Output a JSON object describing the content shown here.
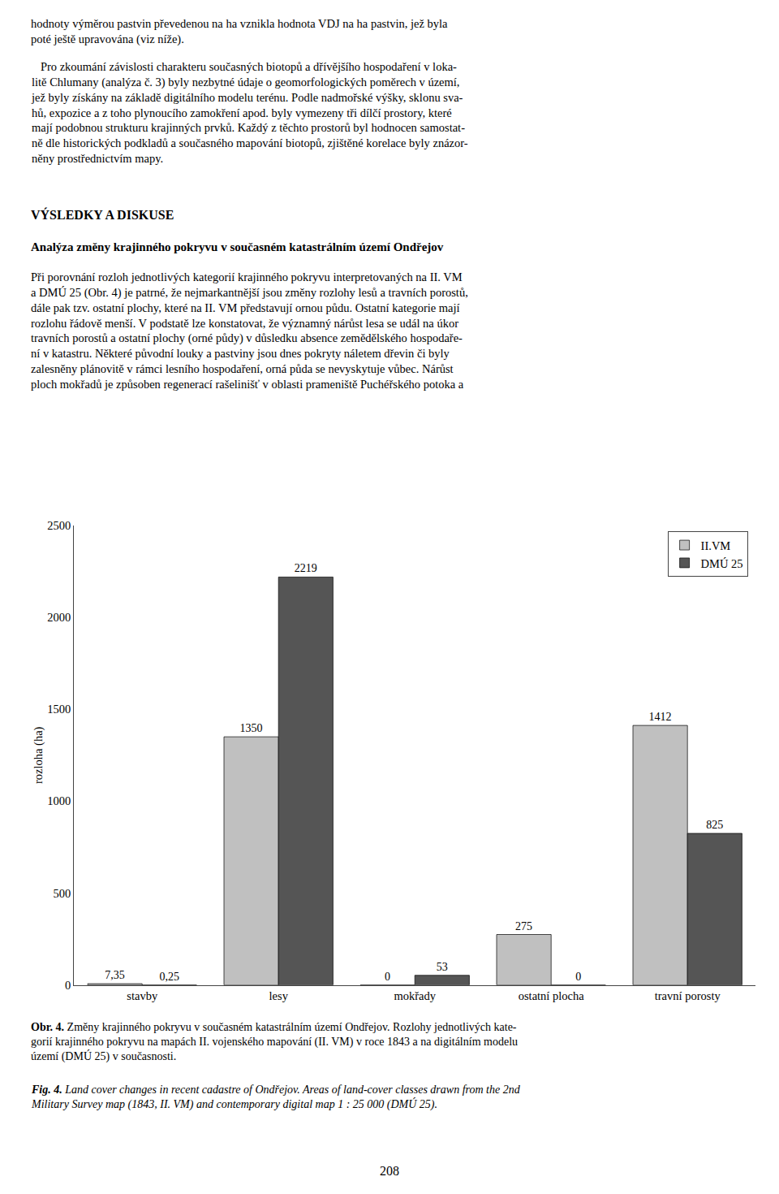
{
  "chart_data": {
    "type": "bar",
    "categories": [
      "stavby",
      "lesy",
      "mokřady",
      "ostatní plocha",
      "travní porosty"
    ],
    "series": [
      {
        "name": "II.VM",
        "color": "#c0c0c0",
        "values": [
          7.35,
          1350,
          0,
          275,
          1412
        ],
        "value_labels": [
          "7,35",
          "1350",
          "0",
          "275",
          "1412"
        ]
      },
      {
        "name": "DMÚ 25",
        "color": "#555555",
        "values": [
          0.25,
          2219,
          53,
          0,
          825
        ],
        "value_labels": [
          "0,25",
          "2219",
          "53",
          "0",
          "825"
        ]
      }
    ],
    "ylabel": "rozloha (ha)",
    "ylim": [
      0,
      2500
    ],
    "yticks": [
      0,
      500,
      1000,
      1500,
      2000,
      2500
    ],
    "grid": false,
    "legend": "upper right",
    "data_labels": true,
    "annotations": [
      "hodnoty výměrou pastvin převedenou na ha vznikla hodnota VDJ na ha pastvin, jež byla\npoté ještě upravována (viz níže).",
      "   Pro zkoumání závislosti charakteru současných biotopů a dřívějšího hospodaření v loka-\nlitě Chlumany (analýza č. 3) byly nezbytné údaje o geomorfologických poměrech v území,\njež byly získány na základě digitálního modelu terénu. Podle nadmořské výšky, sklonu sva-\nhů, expozice a z toho plynoucího zamokření apod. byly vymezeny tři dílčí prostory, které\nmají podobnou strukturu krajinných prvků. Každý z těchto prostorů byl hodnocen samostat-\nně dle historických podkladů a současného mapování biotopů, zjištěné korelace byly znázor-\nněny prostřednictvím mapy.",
      "VÝSLEDKY A DISKUSE",
      "Analýza změny krajinného pokryvu v současném katastrálním území Ondřejov",
      "Při porovnání rozloh jednotlivých kategorií krajinného pokryvu interpretovaných na II. VM\na DMÚ 25 (Obr. 4) je patrné, že nejmarkantnější jsou změny rozlohy lesů a travních porostů,\ndále pak tzv. ostatní plochy, které na II. VM představují ornou půdu. Ostatní kategorie mají\nrozlohu řádově menší. V podstatě lze konstatovat, že významný nárůst lesa se udál na úkor\ntravních porostů a ostatní plochy (orné půdy) v důsledku absence zemědělského hospodaře-\nní v katastru. Některé původní louky a pastviny jsou dnes pokryty náletem dřevin či byly\nzalesněny plánovitě v rámci lesního hospodaření, orná půda se nevyskytuje vůbec. Nárůst\nploch mokřadů je způsoben regenerací rašelinišť v oblasti prameniště Puchéřského potoka a",
      "Obr. 4.",
      " Změny krajinného pokryvu v současném katastrálním území Ondřejov. Rozlohy jednotlivých kate-\ngorií krajinného pokryvu na mapách II. vojenského mapování (II. VM) v roce 1843 a na digitálním modelu\núzemí (DMÚ 25) v současnosti.",
      "Fig. 4.",
      " Land cover changes in recent cadastre of Ondřejov. Areas of land-cover classes drawn from the 2nd\nMilitary Survey map (1843, II. VM) and contemporary digital map 1 : 25 000 (DMÚ 25).",
      "208"
    ]
  }
}
